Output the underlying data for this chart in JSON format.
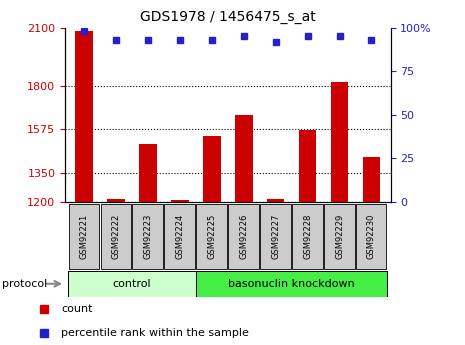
{
  "title": "GDS1978 / 1456475_s_at",
  "samples": [
    "GSM92221",
    "GSM92222",
    "GSM92223",
    "GSM92224",
    "GSM92225",
    "GSM92226",
    "GSM92227",
    "GSM92228",
    "GSM92229",
    "GSM92230"
  ],
  "counts": [
    2080,
    1215,
    1500,
    1210,
    1540,
    1650,
    1215,
    1570,
    1820,
    1430
  ],
  "percentile_ranks": [
    98,
    93,
    93,
    93,
    93,
    95,
    92,
    95,
    95,
    93
  ],
  "ylim_left": [
    1200,
    2100
  ],
  "ylim_right": [
    0,
    100
  ],
  "yticks_left": [
    1200,
    1350,
    1575,
    1800,
    2100
  ],
  "yticks_right": [
    0,
    25,
    50,
    75,
    100
  ],
  "bar_color": "#cc0000",
  "dot_color": "#2222cc",
  "grid_color": "#000000",
  "n_control": 4,
  "control_label": "control",
  "knockdown_label": "basonuclin knockdown",
  "protocol_label": "protocol",
  "legend_count": "count",
  "legend_pct": "percentile rank within the sample",
  "control_color": "#ccffcc",
  "knockdown_color": "#44ee44",
  "bg_color": "#ffffff",
  "tick_label_bg": "#cccccc"
}
